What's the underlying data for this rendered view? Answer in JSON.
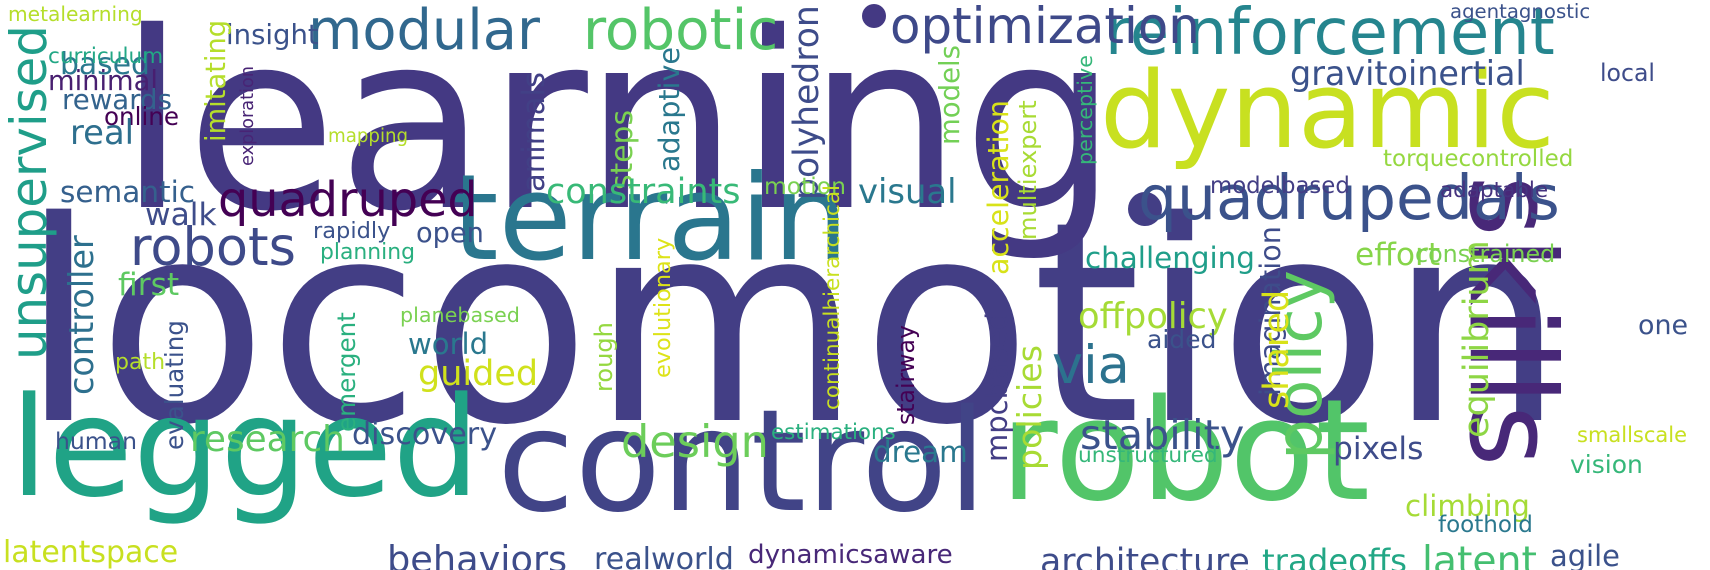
{
  "words": [
    {
      "text": "locomotion",
      "color": "#433e85",
      "rotate": 0
    },
    {
      "text": "learning",
      "color": "#443983",
      "rotate": 0
    },
    {
      "text": "terrain",
      "color": "#2a768e",
      "rotate": 0
    },
    {
      "text": "dynamic",
      "color": "#c8e020",
      "rotate": 0
    },
    {
      "text": "legged",
      "color": "#20a386",
      "rotate": 0
    },
    {
      "text": "control",
      "color": "#414487",
      "rotate": 0
    },
    {
      "text": "robot",
      "color": "#52c569",
      "rotate": 0
    },
    {
      "text": "skills",
      "color": "#482878",
      "rotate": 90
    },
    {
      "text": "reinforcement",
      "color": "#25858e",
      "rotate": 0
    },
    {
      "text": "quadrupedals",
      "color": "#3b528b",
      "rotate": 0
    },
    {
      "text": "unsupervised",
      "color": "#1f9e89",
      "rotate": -90
    },
    {
      "text": "modular",
      "color": "#31688e",
      "rotate": 0
    },
    {
      "text": "robotic",
      "color": "#54c568",
      "rotate": 0
    },
    {
      "text": "optimization",
      "color": "#3e4989",
      "rotate": 0
    },
    {
      "text": "quadruped",
      "color": "#440154",
      "rotate": 0
    },
    {
      "text": "robots",
      "color": "#3e4a89",
      "rotate": 0
    },
    {
      "text": "policy",
      "color": "#5ec962",
      "rotate": -90
    },
    {
      "text": "via",
      "color": "#2c728e",
      "rotate": 0
    },
    {
      "text": "design",
      "color": "#6ccd5a",
      "rotate": 0
    },
    {
      "text": "torquecontrolled",
      "color": "#95d840",
      "rotate": 0
    },
    {
      "text": "gravitoinertial",
      "color": "#3b528b",
      "rotate": 0
    },
    {
      "text": "polyhedron",
      "color": "#3e4c8a",
      "rotate": -90
    },
    {
      "text": "adaptive",
      "color": "#2a788e",
      "rotate": -90
    },
    {
      "text": "steps",
      "color": "#7ad151",
      "rotate": -90
    },
    {
      "text": "animals",
      "color": "#424086",
      "rotate": -90
    },
    {
      "text": "constraints",
      "color": "#38b977",
      "rotate": 0
    },
    {
      "text": "visual",
      "color": "#2a788e",
      "rotate": 0
    },
    {
      "text": "semantic",
      "color": "#35608d",
      "rotate": 0
    },
    {
      "text": "walk",
      "color": "#3e4c8a",
      "rotate": 0
    },
    {
      "text": "open",
      "color": "#3b518b",
      "rotate": 0
    },
    {
      "text": "based",
      "color": "#2a788e",
      "rotate": 0
    },
    {
      "text": "minimal",
      "color": "#481f70",
      "rotate": 0
    },
    {
      "text": "rewards",
      "color": "#33638d",
      "rotate": 0
    },
    {
      "text": "online",
      "color": "#440154",
      "rotate": 0
    },
    {
      "text": "real",
      "color": "#2e6f8e",
      "rotate": 0
    },
    {
      "text": "curriculum",
      "color": "#22a785",
      "rotate": 0
    },
    {
      "text": "metalearning",
      "color": "#b5de2b",
      "rotate": 0
    },
    {
      "text": "insight",
      "color": "#3b528b",
      "rotate": 0
    },
    {
      "text": "imitating",
      "color": "#b5de2b",
      "rotate": -90
    },
    {
      "text": "exploration",
      "color": "#482475",
      "rotate": -90
    },
    {
      "text": "mapping",
      "color": "#b5de2b",
      "rotate": 0
    },
    {
      "text": "models",
      "color": "#73d056",
      "rotate": -90
    },
    {
      "text": "acceleration",
      "color": "#d8e219",
      "rotate": -90
    },
    {
      "text": "multiexpert",
      "color": "#a8db34",
      "rotate": -90
    },
    {
      "text": "perceptive",
      "color": "#35b779",
      "rotate": -90
    },
    {
      "text": "agentagnostic",
      "color": "#3b528b",
      "rotate": 0
    },
    {
      "text": "local",
      "color": "#3e4c8a",
      "rotate": 0
    },
    {
      "text": "modelbased",
      "color": "#433e85",
      "rotate": 0
    },
    {
      "text": "adaptable",
      "color": "#46337f",
      "rotate": 0
    },
    {
      "text": "motion",
      "color": "#7ad151",
      "rotate": 0
    },
    {
      "text": "challenging",
      "color": "#1f9e89",
      "rotate": 0
    },
    {
      "text": "effort",
      "color": "#86d549",
      "rotate": 0
    },
    {
      "text": "constrained",
      "color": "#7ad151",
      "rotate": 0
    },
    {
      "text": "imagination",
      "color": "#3e4c8a",
      "rotate": -90
    },
    {
      "text": "equilibrium",
      "color": "#8ed645",
      "rotate": -90
    },
    {
      "text": "one",
      "color": "#3b528b",
      "rotate": 0
    },
    {
      "text": "offpolicy",
      "color": "#a5db36",
      "rotate": 0
    },
    {
      "text": "aided",
      "color": "#3b528b",
      "rotate": 0
    },
    {
      "text": "shared",
      "color": "#d8e219",
      "rotate": -90
    },
    {
      "text": "first",
      "color": "#5ec962",
      "rotate": 0
    },
    {
      "text": "controller",
      "color": "#2d708e",
      "rotate": -90
    },
    {
      "text": "rapidly",
      "color": "#3b528b",
      "rotate": 0
    },
    {
      "text": "planning",
      "color": "#29af7f",
      "rotate": 0
    },
    {
      "text": "continualhierarchical",
      "color": "#c8e020",
      "rotate": -90
    },
    {
      "text": "evolutionary",
      "color": "#dde318",
      "rotate": -90
    },
    {
      "text": "planebased",
      "color": "#7ad151",
      "rotate": 0
    },
    {
      "text": "emergent",
      "color": "#2ab07f",
      "rotate": -90
    },
    {
      "text": "world",
      "color": "#2a788e",
      "rotate": 0
    },
    {
      "text": "guided",
      "color": "#d0e11c",
      "rotate": 0
    },
    {
      "text": "rough",
      "color": "#95d840",
      "rotate": -90
    },
    {
      "text": "stairway",
      "color": "#440154",
      "rotate": -90
    },
    {
      "text": "path",
      "color": "#b5de2b",
      "rotate": 0
    },
    {
      "text": "evaluating",
      "color": "#3b528b",
      "rotate": -90
    },
    {
      "text": "human",
      "color": "#3b528b",
      "rotate": 0
    },
    {
      "text": "research",
      "color": "#5ec962",
      "rotate": 0
    },
    {
      "text": "discovery",
      "color": "#3b528b",
      "rotate": 0
    },
    {
      "text": "estimations",
      "color": "#2ab07f",
      "rotate": 0
    },
    {
      "text": "mpcbased",
      "color": "#433e85",
      "rotate": -90
    },
    {
      "text": "policies",
      "color": "#a8db34",
      "rotate": -90
    },
    {
      "text": "dream",
      "color": "#2a788e",
      "rotate": 0
    },
    {
      "text": "stability",
      "color": "#3b528b",
      "rotate": 0
    },
    {
      "text": "unstructured",
      "color": "#35b779",
      "rotate": 0
    },
    {
      "text": "pixels",
      "color": "#3e4c8a",
      "rotate": 0
    },
    {
      "text": "smallscale",
      "color": "#c8e020",
      "rotate": 0
    },
    {
      "text": "vision",
      "color": "#35b779",
      "rotate": 0
    },
    {
      "text": "climbing",
      "color": "#a5db36",
      "rotate": 0
    },
    {
      "text": "foothold",
      "color": "#2a788e",
      "rotate": 0
    },
    {
      "text": "behaviors",
      "color": "#3e4c8a",
      "rotate": 0
    },
    {
      "text": "realworld",
      "color": "#3b528b",
      "rotate": 0
    },
    {
      "text": "dynamicsaware",
      "color": "#482878",
      "rotate": 0
    },
    {
      "text": "architecture",
      "color": "#3e4c8a",
      "rotate": 0
    },
    {
      "text": "tradeoffs",
      "color": "#22a785",
      "rotate": 0
    },
    {
      "text": "latent",
      "color": "#44bf70",
      "rotate": 0
    },
    {
      "text": "agile",
      "color": "#3b528b",
      "rotate": 0
    },
    {
      "text": "latentspace",
      "color": "#c8e020",
      "rotate": 0
    }
  ]
}
